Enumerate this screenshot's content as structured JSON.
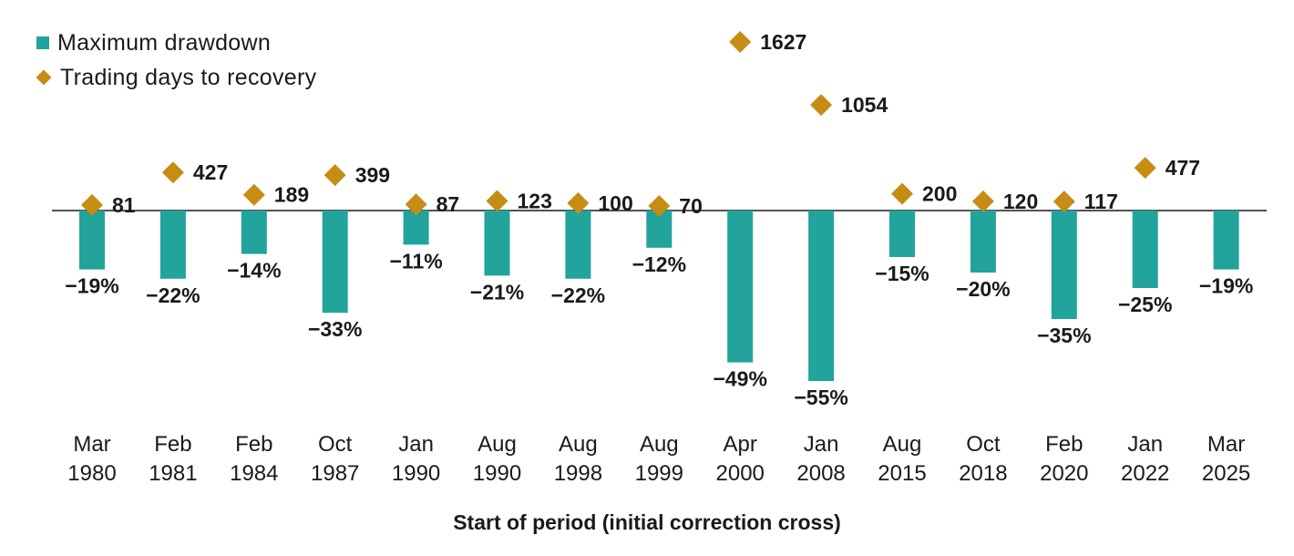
{
  "chart_data": {
    "type": "bar+scatter",
    "title": "",
    "xlabel": "Start of period (initial correction cross)",
    "categories": [
      [
        "Mar",
        "1980"
      ],
      [
        "Feb",
        "1981"
      ],
      [
        "Feb",
        "1984"
      ],
      [
        "Oct",
        "1987"
      ],
      [
        "Jan",
        "1990"
      ],
      [
        "Aug",
        "1990"
      ],
      [
        "Aug",
        "1998"
      ],
      [
        "Aug",
        "1999"
      ],
      [
        "Apr",
        "2000"
      ],
      [
        "Jan",
        "2008"
      ],
      [
        "Aug",
        "2015"
      ],
      [
        "Oct",
        "2018"
      ],
      [
        "Feb",
        "2020"
      ],
      [
        "Jan",
        "2022"
      ],
      [
        "Mar",
        "2025"
      ]
    ],
    "series": [
      {
        "name": "Maximum drawdown",
        "type": "bar",
        "unit": "%",
        "values": [
          -19,
          -22,
          -14,
          -33,
          -11,
          -21,
          -22,
          -12,
          -49,
          -55,
          -15,
          -20,
          -35,
          -25,
          -19
        ],
        "labels": [
          "−19%",
          "−22%",
          "−14%",
          "−33%",
          "−11%",
          "−21%",
          "−22%",
          "−12%",
          "−49%",
          "−55%",
          "−15%",
          "−20%",
          "−35%",
          "−25%",
          "−19%"
        ]
      },
      {
        "name": "Trading days to recovery",
        "type": "scatter",
        "marker": "diamond",
        "values": [
          81,
          427,
          189,
          399,
          87,
          123,
          100,
          70,
          1627,
          1054,
          200,
          120,
          117,
          477,
          null
        ],
        "labels": [
          "81",
          "427",
          "189",
          "399",
          "87",
          "123",
          "100",
          "70",
          "1627",
          "1054",
          "200",
          "120",
          "117",
          "477",
          ""
        ]
      }
    ],
    "legend": {
      "placement": "top-left"
    },
    "colors": {
      "bar": "#22A39B",
      "marker": "#C68D14",
      "text": "#1a1a1a",
      "axis": "#1a1a1a"
    }
  }
}
